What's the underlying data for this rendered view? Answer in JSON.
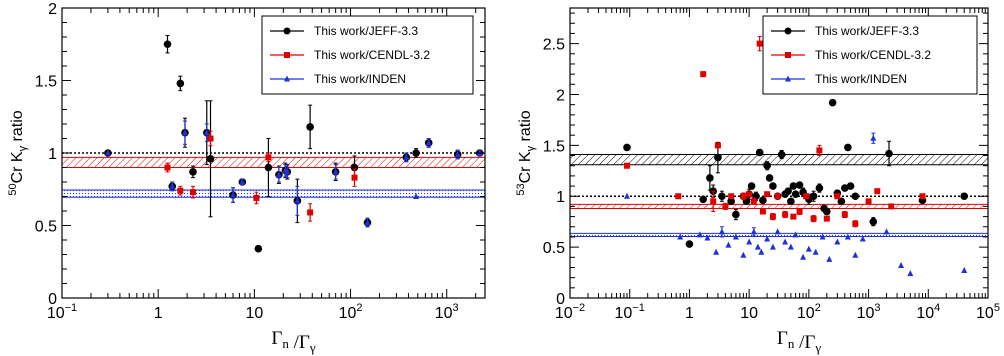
{
  "colors": {
    "jeff": "#000000",
    "cendl": "#e00000",
    "inden": "#1f32d8"
  },
  "chart_data": [
    {
      "type": "scatter",
      "xscale": "log",
      "xlim": [
        0.1,
        2500
      ],
      "ylim": [
        0,
        2
      ],
      "xlabel": "Γn /Γγ",
      "ylabel_sup": "50",
      "ylabel": "Cr Kγ ratio",
      "x_ticks": [
        {
          "v": 0.1,
          "b": "10",
          "e": "−1"
        },
        {
          "v": 1,
          "b": "1",
          "e": ""
        },
        {
          "v": 10,
          "b": "10",
          "e": ""
        },
        {
          "v": 100,
          "b": "10",
          "e": "2"
        },
        {
          "v": 1000,
          "b": "10",
          "e": "3"
        }
      ],
      "y_ticks": [
        {
          "v": 0,
          "t": "0"
        },
        {
          "v": 0.5,
          "t": "0.5"
        },
        {
          "v": 1,
          "t": "1"
        },
        {
          "v": 1.5,
          "t": "1.5"
        },
        {
          "v": 2,
          "t": "2"
        }
      ],
      "legend": [
        "This work/JEFF-3.3",
        "This work/CENDL-3.2",
        "This work/INDEN"
      ],
      "legend_position": "top-right",
      "bands": [
        {
          "series": 0,
          "center": 1.0,
          "half": 0.01,
          "style": "dotted"
        },
        {
          "series": 1,
          "center": 0.935,
          "half": 0.035,
          "style": "hatch"
        },
        {
          "series": 2,
          "center": 0.72,
          "half": 0.025,
          "style": "dots"
        }
      ],
      "series": [
        {
          "name": "This work/JEFF-3.3",
          "x": [
            0.3,
            1.25,
            1.4,
            1.7,
            1.9,
            2.3,
            3.2,
            3.5,
            6.0,
            7.5,
            11,
            14,
            18,
            21,
            22,
            28,
            38,
            70,
            110,
            150,
            380,
            480,
            650,
            1300,
            2200
          ],
          "y": [
            1.0,
            1.75,
            0.77,
            1.48,
            1.14,
            0.87,
            1.14,
            0.96,
            0.71,
            0.8,
            0.34,
            0.9,
            0.85,
            0.88,
            0.87,
            0.67,
            1.18,
            0.87,
            0.9,
            0.52,
            0.97,
            1.0,
            1.07,
            0.99,
            1.0
          ],
          "err": [
            0,
            0.06,
            0.03,
            0.05,
            0.1,
            0.04,
            0.22,
            0.4,
            0.05,
            0.02,
            0.0,
            0.2,
            0.06,
            0.05,
            0.05,
            0.15,
            0.15,
            0.06,
            0.08,
            0.03,
            0.03,
            0.03,
            0.03,
            0.03,
            0.02
          ]
        },
        {
          "name": "This work/CENDL-3.2",
          "x": [
            1.25,
            1.7,
            2.3,
            3.5,
            10.5,
            14,
            38,
            110
          ],
          "y": [
            0.9,
            0.74,
            0.73,
            1.1,
            0.69,
            0.97,
            0.59,
            0.83
          ],
          "err": [
            0.03,
            0.03,
            0.04,
            0.05,
            0.04,
            0.03,
            0.06,
            0.06
          ]
        },
        {
          "name": "This work/INDEN",
          "x": [
            0.3,
            1.4,
            1.9,
            3.2,
            6.0,
            7.5,
            18,
            21,
            22,
            28,
            70,
            150,
            380,
            480,
            650,
            1300,
            2200
          ],
          "y": [
            1.0,
            0.77,
            1.14,
            1.14,
            0.71,
            0.8,
            0.85,
            0.88,
            0.87,
            0.67,
            0.87,
            0.52,
            0.97,
            0.7,
            1.07,
            0.99,
            1.0
          ],
          "err": [
            0,
            0.03,
            0.08,
            0.06,
            0.05,
            0.02,
            0.05,
            0.04,
            0.04,
            0.1,
            0.05,
            0.03,
            0.03,
            0.0,
            0.03,
            0.03,
            0.02
          ]
        }
      ]
    },
    {
      "type": "scatter",
      "xscale": "log",
      "xlim": [
        0.01,
        100000
      ],
      "ylim": [
        0,
        2.85
      ],
      "xlabel": "Γn /Γγ",
      "ylabel_sup": "53",
      "ylabel": "Cr Kγ ratio",
      "x_ticks": [
        {
          "v": 0.01,
          "b": "10",
          "e": "−2"
        },
        {
          "v": 0.1,
          "b": "10",
          "e": "−1"
        },
        {
          "v": 1,
          "b": "1",
          "e": ""
        },
        {
          "v": 10,
          "b": "10",
          "e": ""
        },
        {
          "v": 100,
          "b": "10",
          "e": "2"
        },
        {
          "v": 1000,
          "b": "10",
          "e": "3"
        },
        {
          "v": 10000,
          "b": "10",
          "e": "4"
        },
        {
          "v": 100000,
          "b": "10",
          "e": "5"
        }
      ],
      "y_ticks": [
        {
          "v": 0,
          "t": "0"
        },
        {
          "v": 0.5,
          "t": "0.5"
        },
        {
          "v": 1,
          "t": "1"
        },
        {
          "v": 1.5,
          "t": "1.5"
        },
        {
          "v": 2,
          "t": "2"
        },
        {
          "v": 2.5,
          "t": "2.5"
        }
      ],
      "legend": [
        "This work/JEFF-3.3",
        "This work/CENDL-3.2",
        "This work/INDEN"
      ],
      "legend_position": "top-right",
      "bands": [
        {
          "series": 0,
          "center": 1.0,
          "half": 0.01,
          "style": "dotted"
        },
        {
          "series": 0,
          "center": 1.36,
          "half": 0.05,
          "style": "hatch"
        },
        {
          "series": 1,
          "center": 0.9,
          "half": 0.02,
          "style": "hatch"
        },
        {
          "series": 2,
          "center": 0.62,
          "half": 0.015,
          "style": "dots"
        }
      ],
      "series": [
        {
          "name": "This work/JEFF-3.3",
          "x": [
            0.09,
            1.0,
            1.7,
            2.2,
            2.5,
            3.0,
            3.5,
            5.0,
            6.0,
            8.0,
            9.0,
            10.0,
            11.0,
            13.0,
            15.0,
            17.0,
            20.0,
            22.0,
            25.0,
            30.0,
            35.0,
            40.0,
            45.0,
            50.0,
            55.0,
            60.0,
            70.0,
            80.0,
            100.0,
            120.0,
            150.0,
            180.0,
            200.0,
            250.0,
            300.0,
            350.0,
            400.0,
            450.0,
            500.0,
            600.0,
            1200.0,
            2200.0,
            8000.0,
            40000.0
          ],
          "y": [
            1.48,
            0.53,
            0.97,
            1.18,
            1.05,
            1.38,
            1.0,
            0.95,
            0.82,
            1.0,
            0.95,
            1.02,
            1.1,
            1.0,
            1.43,
            0.96,
            1.3,
            1.18,
            1.1,
            1.0,
            1.41,
            1.02,
            1.05,
            0.95,
            1.1,
            1.02,
            1.11,
            1.04,
            0.97,
            1.0,
            1.08,
            0.88,
            0.85,
            1.92,
            1.03,
            0.95,
            1.08,
            1.48,
            1.1,
            1.0,
            0.75,
            1.42,
            0.96,
            1.0
          ],
          "err": [
            0,
            0,
            0,
            0.12,
            0.06,
            0.15,
            0.05,
            0,
            0.05,
            0,
            0,
            0.05,
            0.03,
            0.04,
            0.03,
            0,
            0.04,
            0,
            0,
            0,
            0.04,
            0,
            0,
            0,
            0,
            0,
            0,
            0.04,
            0.05,
            0.05,
            0.04,
            0,
            0,
            0,
            0,
            0,
            0,
            0,
            0,
            0,
            0.04,
            0.12,
            0,
            0
          ]
        },
        {
          "name": "This work/CENDL-3.2",
          "x": [
            0.09,
            0.65,
            1.7,
            2.5,
            3.0,
            4.0,
            5.0,
            8.0,
            10.0,
            12.0,
            15.0,
            17.0,
            20.0,
            25.0,
            30.0,
            40.0,
            55.0,
            70.0,
            90.0,
            120.0,
            150.0,
            200.0,
            300.0,
            400.0,
            600.0,
            1000.0,
            1400.0,
            2400.0,
            8000.0
          ],
          "y": [
            1.3,
            1.0,
            2.2,
            0.95,
            1.5,
            0.9,
            1.0,
            1.0,
            1.02,
            0.95,
            2.5,
            0.85,
            1.02,
            0.8,
            1.0,
            0.82,
            0.8,
            0.85,
            1.0,
            0.78,
            1.45,
            0.78,
            1.0,
            0.82,
            0.73,
            0.95,
            1.05,
            0.9,
            1.0
          ],
          "err": [
            0,
            0,
            0,
            0.1,
            0,
            0.03,
            0,
            0.03,
            0,
            0.03,
            0.07,
            0,
            0,
            0.03,
            0,
            0.03,
            0,
            0.03,
            0,
            0.03,
            0.05,
            0,
            0,
            0.03,
            0.03,
            0,
            0,
            0,
            0
          ]
        },
        {
          "name": "This work/INDEN",
          "x": [
            0.09,
            0.7,
            1.5,
            2.0,
            2.8,
            3.5,
            4.5,
            6.0,
            8.0,
            10.0,
            12.0,
            14.0,
            16.0,
            20.0,
            25.0,
            30.0,
            40.0,
            50.0,
            60.0,
            80.0,
            100.0,
            130.0,
            170.0,
            220.0,
            300.0,
            450.0,
            600.0,
            800.0,
            1200.0,
            2000.0,
            3500.0,
            5000.0,
            40000.0
          ],
          "y": [
            1.0,
            0.6,
            0.62,
            0.59,
            0.45,
            0.65,
            0.52,
            0.6,
            0.42,
            0.55,
            0.65,
            0.5,
            0.45,
            0.58,
            0.5,
            0.65,
            0.55,
            0.5,
            0.62,
            0.4,
            0.48,
            0.45,
            0.6,
            0.38,
            0.55,
            0.6,
            0.42,
            0.58,
            1.57,
            0.65,
            0.32,
            0.24,
            0.27
          ],
          "err": [
            0,
            0,
            0,
            0,
            0,
            0.05,
            0,
            0,
            0,
            0,
            0.04,
            0,
            0,
            0,
            0,
            0,
            0,
            0,
            0,
            0,
            0,
            0,
            0,
            0,
            0,
            0,
            0,
            0,
            0.05,
            0,
            0,
            0,
            0
          ]
        }
      ]
    }
  ]
}
